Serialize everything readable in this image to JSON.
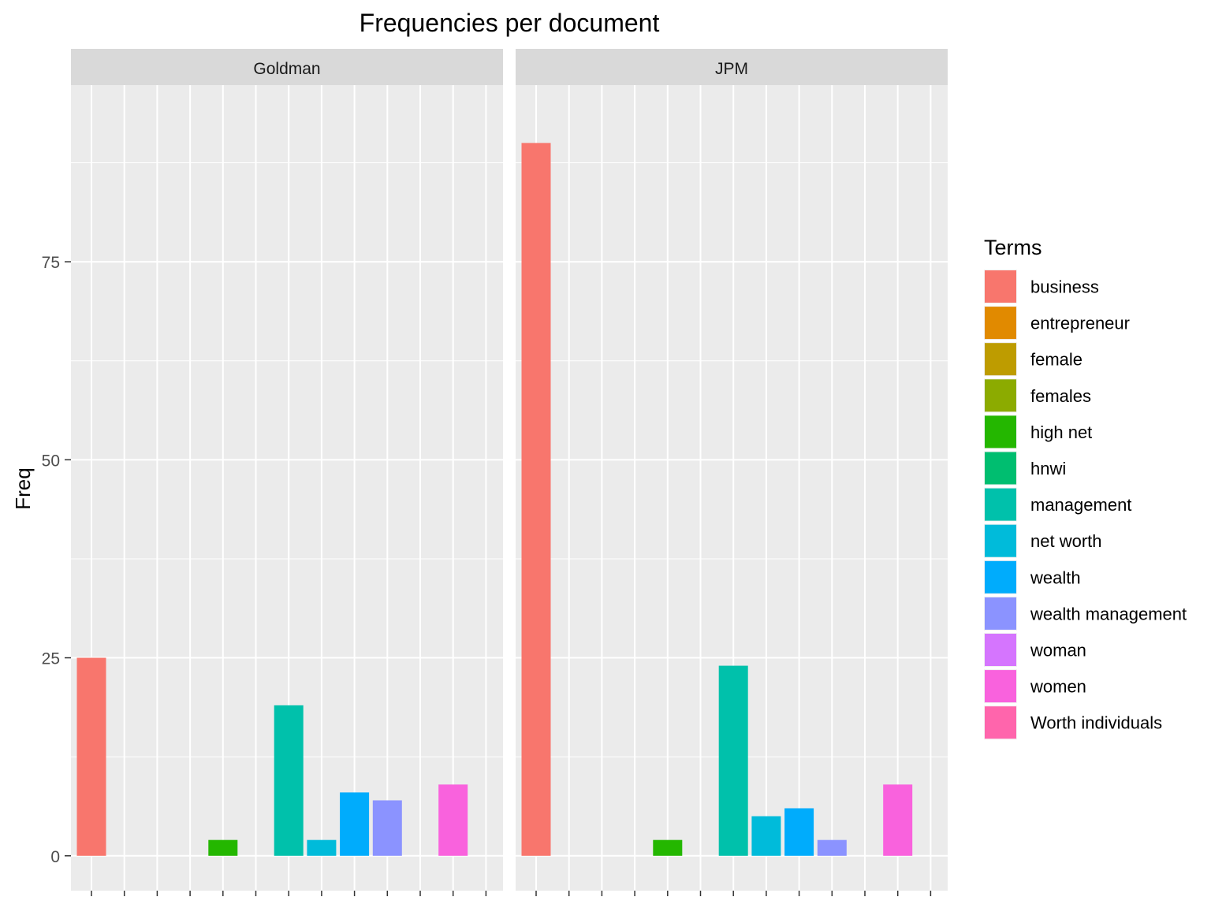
{
  "chart_data": {
    "type": "bar",
    "title": "Frequencies per document",
    "xlabel": "",
    "ylabel": "Freq",
    "ylim": [
      -4.4,
      97.3
    ],
    "yticks": [
      0,
      25,
      50,
      75
    ],
    "grid": true,
    "legend": {
      "title": "Terms",
      "position": "right",
      "entries": [
        {
          "label": "business",
          "color": "#F8766D"
        },
        {
          "label": "entrepreneur",
          "color": "#E18A00"
        },
        {
          "label": "female",
          "color": "#BE9C00"
        },
        {
          "label": "females",
          "color": "#8CAB00"
        },
        {
          "label": "high net",
          "color": "#24B700"
        },
        {
          "label": "hnwi",
          "color": "#00BE70"
        },
        {
          "label": "management",
          "color": "#00C1AB"
        },
        {
          "label": "net worth",
          "color": "#00BBDA"
        },
        {
          "label": "wealth",
          "color": "#00ACFC"
        },
        {
          "label": "wealth management",
          "color": "#8B93FF"
        },
        {
          "label": "woman",
          "color": "#D575FE"
        },
        {
          "label": "women",
          "color": "#F962DD"
        },
        {
          "label": "Worth individuals",
          "color": "#FF65AC"
        }
      ]
    },
    "categories": [
      "business",
      "entrepreneur",
      "female",
      "females",
      "high net",
      "hnwi",
      "management",
      "net worth",
      "wealth",
      "wealth management",
      "woman",
      "women",
      "Worth individuals"
    ],
    "panels": [
      {
        "name": "Goldman",
        "values": [
          25,
          0,
          0,
          0,
          2,
          0,
          19,
          2,
          8,
          7,
          0,
          9,
          0
        ]
      },
      {
        "name": "JPM",
        "values": [
          90,
          0,
          0,
          0,
          2,
          0,
          24,
          5,
          6,
          2,
          0,
          9,
          0
        ]
      }
    ]
  }
}
